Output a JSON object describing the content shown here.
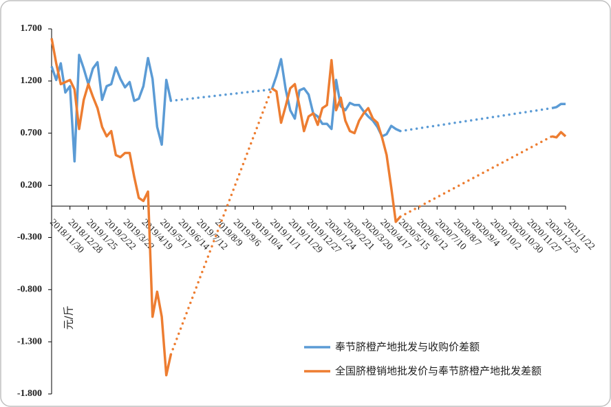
{
  "chart_data": {
    "type": "line",
    "y_label": "元/斤",
    "categories": [
      "2018/11/30",
      null,
      null,
      null,
      "2018/12/28",
      null,
      null,
      null,
      "2019/1/25",
      null,
      null,
      null,
      "2019/2/22",
      null,
      null,
      null,
      "2019/3/22",
      null,
      null,
      null,
      "2019/4/19",
      null,
      null,
      null,
      "2019/5/17",
      null,
      null,
      null,
      "2019/6/14",
      null,
      null,
      null,
      "2019/7/12",
      null,
      null,
      null,
      "2019/8/9",
      null,
      null,
      null,
      "2019/9/6",
      null,
      null,
      null,
      "2019/10/4",
      null,
      null,
      null,
      "2019/11/1",
      null,
      null,
      null,
      "2019/11/29",
      null,
      null,
      null,
      "2019/12/27",
      null,
      null,
      null,
      "2020/1/24",
      null,
      null,
      null,
      "2020/2/21",
      null,
      null,
      null,
      "2020/3/20",
      null,
      null,
      null,
      "2020/4/17",
      null,
      null,
      null,
      "2020/5/15",
      null,
      null,
      null,
      "2020/6/12",
      null,
      null,
      null,
      "2020/7/10",
      null,
      null,
      null,
      "2020/8/7",
      null,
      null,
      null,
      "2020/9/4",
      null,
      null,
      null,
      "2020/10/2",
      null,
      null,
      null,
      "2020/10/30",
      null,
      null,
      null,
      "2020/11/27",
      null,
      null,
      null,
      "2020/12/25",
      null,
      null,
      null,
      "2021/1/22"
    ],
    "series": [
      {
        "name": "奉节脐橙产地批发与收购价差额",
        "color": "#5b9bd5",
        "values": [
          1.34,
          1.21,
          1.37,
          1.09,
          1.15,
          0.43,
          1.45,
          1.32,
          1.17,
          1.32,
          1.38,
          1.02,
          1.15,
          1.17,
          1.33,
          1.22,
          1.14,
          1.19,
          1.01,
          1.03,
          1.15,
          1.42,
          1.22,
          0.76,
          0.59,
          1.21,
          1.01,
          null,
          null,
          null,
          null,
          null,
          null,
          null,
          null,
          null,
          null,
          null,
          null,
          null,
          null,
          null,
          null,
          null,
          null,
          null,
          null,
          null,
          1.12,
          1.25,
          1.41,
          1.12,
          0.92,
          0.84,
          1.11,
          1.13,
          1.07,
          0.89,
          0.86,
          0.79,
          0.79,
          0.74,
          1.21,
          0.96,
          0.92,
          0.99,
          0.97,
          0.97,
          0.91,
          0.86,
          0.82,
          0.76,
          0.67,
          0.69,
          0.77,
          0.74,
          0.72,
          null,
          null,
          null,
          null,
          null,
          null,
          null,
          null,
          null,
          null,
          null,
          null,
          null,
          null,
          null,
          null,
          null,
          null,
          null,
          null,
          null,
          null,
          null,
          null,
          null,
          null,
          null,
          null,
          null,
          null,
          null,
          null,
          0.94,
          0.95,
          0.98,
          0.98
        ]
      },
      {
        "name": "全国脐橙销地批发价与奉节脐橙产地批发差额",
        "color": "#ed7d31",
        "values": [
          1.61,
          1.37,
          1.17,
          1.19,
          1.21,
          1.12,
          0.74,
          1.02,
          1.17,
          1.05,
          0.94,
          0.76,
          0.67,
          0.72,
          0.49,
          0.47,
          0.51,
          0.51,
          0.28,
          0.08,
          0.05,
          0.14,
          -1.06,
          -0.82,
          -1.06,
          -1.62,
          -1.42,
          null,
          null,
          null,
          null,
          null,
          null,
          null,
          null,
          null,
          null,
          null,
          null,
          null,
          null,
          null,
          null,
          null,
          null,
          null,
          null,
          null,
          1.13,
          1.1,
          0.8,
          0.96,
          1.13,
          1.17,
          0.96,
          0.72,
          0.86,
          0.89,
          0.78,
          0.94,
          0.97,
          1.4,
          0.92,
          1.04,
          0.82,
          0.72,
          0.7,
          0.82,
          0.89,
          0.94,
          0.84,
          0.8,
          0.66,
          0.49,
          0.18,
          -0.15,
          -0.1,
          null,
          null,
          null,
          null,
          null,
          null,
          null,
          null,
          null,
          null,
          null,
          null,
          null,
          null,
          null,
          null,
          null,
          null,
          null,
          null,
          null,
          null,
          null,
          null,
          null,
          null,
          null,
          null,
          null,
          null,
          null,
          null,
          0.67,
          0.66,
          0.71,
          0.67
        ]
      }
    ],
    "ylim": [
      -1.8,
      1.7
    ],
    "yticks": [
      {
        "value": 1.7,
        "label": "1.700"
      },
      {
        "value": 1.2,
        "label": "1.200"
      },
      {
        "value": 0.7,
        "label": "0.700"
      },
      {
        "value": 0.2,
        "label": "0.200"
      },
      {
        "value": -0.3,
        "label": "-0.300"
      },
      {
        "value": -0.8,
        "label": "-0.800"
      },
      {
        "value": -1.3,
        "label": "-1.300"
      },
      {
        "value": -1.8,
        "label": "-1.800"
      }
    ],
    "grid": false,
    "legend": "lower-right",
    "connect_gaps": "dotted"
  }
}
